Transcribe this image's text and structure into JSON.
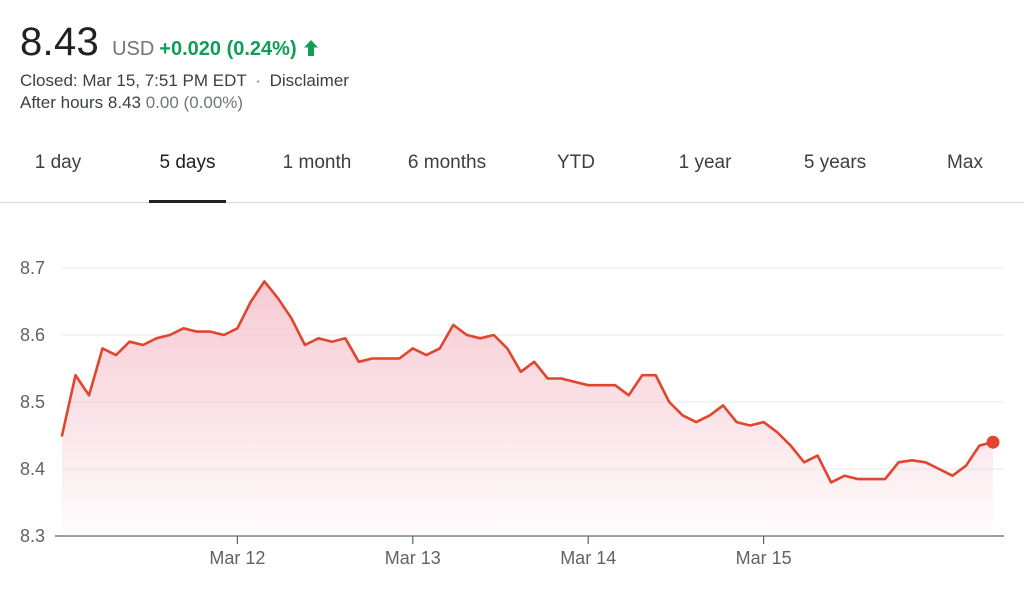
{
  "quote": {
    "price": "8.43",
    "currency": "USD",
    "change": "+0.020 (0.24%)",
    "change_color": "#0f9d58",
    "direction_icon": "arrow-up-icon",
    "closed_text": "Closed: Mar 15, 7:51 PM EDT",
    "separator": "·",
    "disclaimer": "Disclaimer",
    "after_hours_label": "After hours",
    "after_hours_price": "8.43",
    "after_hours_change": "0.00 (0.00%)"
  },
  "tabs": [
    {
      "label": "1 day",
      "active": false
    },
    {
      "label": "5 days",
      "active": true
    },
    {
      "label": "1 month",
      "active": false
    },
    {
      "label": "6 months",
      "active": false
    },
    {
      "label": "YTD",
      "active": false
    },
    {
      "label": "1 year",
      "active": false
    },
    {
      "label": "5 years",
      "active": false
    },
    {
      "label": "Max",
      "active": false
    }
  ],
  "chart_data": {
    "type": "area",
    "ylim": [
      8.3,
      8.7
    ],
    "yticks": [
      "8.7",
      "8.6",
      "8.5",
      "8.4",
      "8.3"
    ],
    "ytick_values": [
      8.7,
      8.6,
      8.5,
      8.4,
      8.3
    ],
    "xticks": [
      "Mar 12",
      "Mar 13",
      "Mar 14",
      "Mar 15"
    ],
    "xtick_index": [
      13,
      26,
      39,
      52
    ],
    "grid": true,
    "line_color": "#e0452d",
    "fill_color": "#f4b8c5",
    "series": [
      {
        "values": [
          8.45,
          8.54,
          8.51,
          8.58,
          8.57,
          8.59,
          8.585,
          8.595,
          8.6,
          8.61,
          8.605,
          8.605,
          8.6,
          8.61,
          8.65,
          8.68,
          8.655,
          8.625,
          8.585,
          8.595,
          8.59,
          8.595,
          8.56,
          8.565,
          8.565,
          8.565,
          8.58,
          8.57,
          8.58,
          8.615,
          8.6,
          8.595,
          8.6,
          8.58,
          8.545,
          8.56,
          8.535,
          8.535,
          8.53,
          8.525,
          8.525,
          8.525,
          8.51,
          8.54,
          8.54,
          8.5,
          8.48,
          8.47,
          8.48,
          8.495,
          8.47,
          8.465,
          8.47,
          8.455,
          8.435,
          8.41,
          8.42,
          8.38,
          8.39,
          8.385,
          8.385,
          8.385,
          8.41,
          8.413,
          8.41,
          8.4,
          8.39,
          8.405,
          8.435,
          8.44
        ]
      }
    ]
  }
}
